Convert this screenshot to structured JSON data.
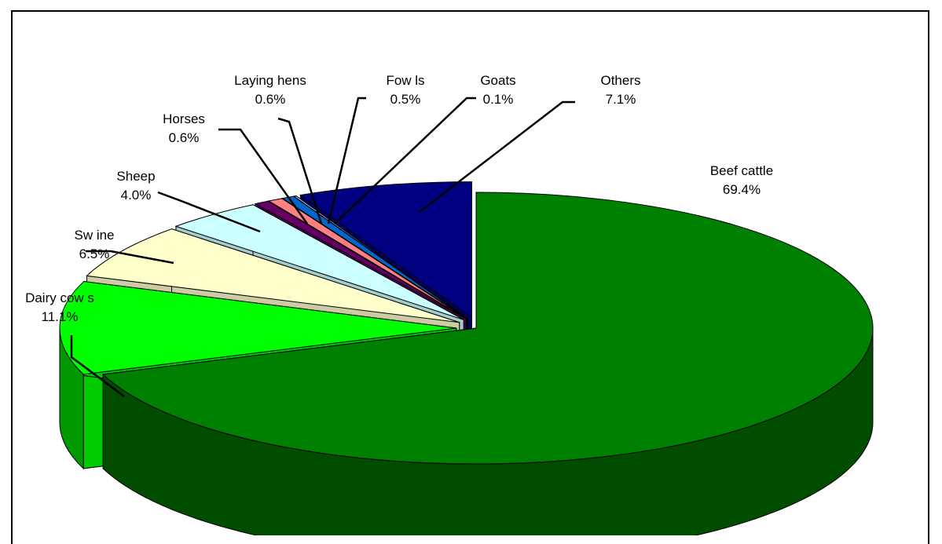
{
  "chart_data": {
    "type": "pie",
    "style": "3d-exploded",
    "legend": "none",
    "slices": [
      {
        "name": "Beef cattle",
        "value": 69.4,
        "value_label": "69.4%",
        "color": "#008000"
      },
      {
        "name": "Dairy cow s",
        "value": 11.1,
        "value_label": "11.1%",
        "color": "#00ff00"
      },
      {
        "name": "Sw ine",
        "value": 6.5,
        "value_label": "6.5%",
        "color": "#ffffcc"
      },
      {
        "name": "Sheep",
        "value": 4.0,
        "value_label": "4.0%",
        "color": "#ccffff"
      },
      {
        "name": "Horses",
        "value": 0.6,
        "value_label": "0.6%",
        "color": "#660066"
      },
      {
        "name": "Laying hens",
        "value": 0.6,
        "value_label": "0.6%",
        "color": "#ff8080"
      },
      {
        "name": "Fow ls",
        "value": 0.5,
        "value_label": "0.5%",
        "color": "#0066cc"
      },
      {
        "name": "Goats",
        "value": 0.1,
        "value_label": "0.1%",
        "color": "#ccccff"
      },
      {
        "name": "Others",
        "value": 7.1,
        "value_label": "7.1%",
        "color": "#000080"
      }
    ]
  }
}
